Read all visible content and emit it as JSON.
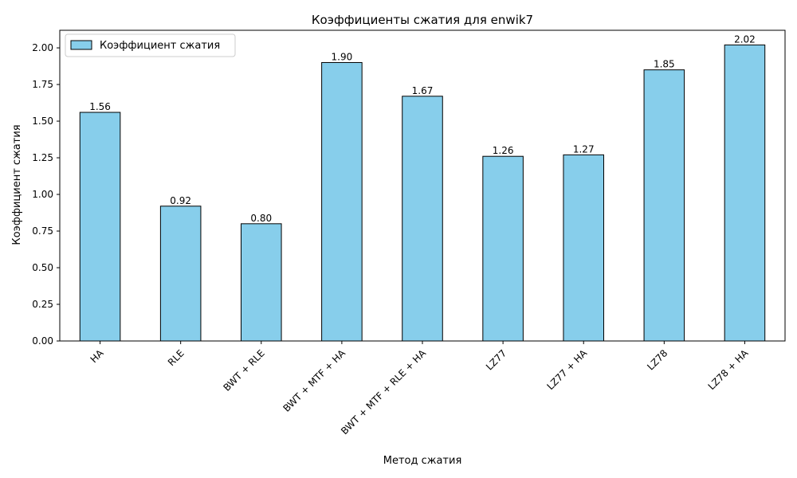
{
  "chart_data": {
    "type": "bar",
    "title": "Коэффициенты сжатия для enwik7",
    "xlabel": "Метод сжатия",
    "ylabel": "Коэффициент сжатия",
    "categories": [
      "HA",
      "RLE",
      "BWT + RLE",
      "BWT + MTF + HA",
      "BWT + MTF + RLE + HA",
      "LZ77",
      "LZ77 + HA",
      "LZ78",
      "LZ78 + HA"
    ],
    "series": [
      {
        "name": "Коэффициент сжатия",
        "values": [
          1.56,
          0.92,
          0.8,
          1.9,
          1.67,
          1.26,
          1.27,
          1.85,
          2.02
        ],
        "labels": [
          "1.56",
          "0.92",
          "0.80",
          "1.90",
          "1.67",
          "1.26",
          "1.27",
          "1.85",
          "2.02"
        ],
        "color": "#87ceeb",
        "edge_color": "#000000"
      }
    ],
    "ylim": [
      0,
      2.12
    ],
    "yticks": [
      "0.00",
      "0.25",
      "0.50",
      "0.75",
      "1.00",
      "1.25",
      "1.50",
      "1.75",
      "2.00"
    ],
    "grid": false,
    "legend_position": "top-left"
  }
}
